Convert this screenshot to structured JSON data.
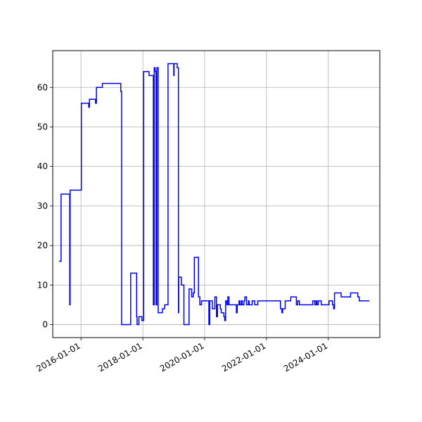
{
  "chart_data": {
    "type": "line",
    "title": "",
    "xlabel": "",
    "ylabel": "",
    "x_axis": "date",
    "xlim": [
      "2015-02-01",
      "2025-09-01"
    ],
    "ylim": [
      -3.3,
      69.3
    ],
    "grid": true,
    "line_color": "#0000ff",
    "x_ticks": [
      "2016-01-01",
      "2018-01-01",
      "2020-01-01",
      "2022-01-01",
      "2024-01-01"
    ],
    "y_ticks": [
      0,
      10,
      20,
      30,
      40,
      50,
      60
    ],
    "series": [
      {
        "style": "steps-post",
        "x": [
          "2015-04-15",
          "2015-05-10",
          "2015-08-20",
          "2015-08-25",
          "2015-09-01",
          "2016-01-05",
          "2016-04-01",
          "2016-04-10",
          "2016-06-20",
          "2016-07-01",
          "2016-09-10",
          "2017-04-15",
          "2017-04-25",
          "2017-05-01",
          "2017-08-10",
          "2017-10-20",
          "2017-10-25",
          "2017-11-15",
          "2017-12-20",
          "2018-01-10",
          "2018-03-15",
          "2018-05-05",
          "2018-05-15",
          "2018-05-25",
          "2018-06-05",
          "2018-06-15",
          "2018-07-01",
          "2018-08-10",
          "2018-08-20",
          "2018-09-15",
          "2018-10-25",
          "2019-01-01",
          "2019-01-05",
          "2019-02-10",
          "2019-02-15",
          "2019-02-25",
          "2019-03-01",
          "2019-04-01",
          "2019-05-01",
          "2019-07-01",
          "2019-08-01",
          "2019-08-20",
          "2019-09-01",
          "2019-09-15",
          "2019-10-20",
          "2019-11-05",
          "2019-11-25",
          "2020-02-20",
          "2020-03-01",
          "2020-03-20",
          "2020-04-01",
          "2020-05-01",
          "2020-05-20",
          "2020-06-01",
          "2020-07-05",
          "2020-07-15",
          "2020-08-15",
          "2020-08-25",
          "2020-09-05",
          "2020-09-20",
          "2020-10-01",
          "2020-10-15",
          "2021-01-10",
          "2021-01-20",
          "2021-02-10",
          "2021-02-20",
          "2021-03-10",
          "2021-03-20",
          "2021-04-10",
          "2021-04-20",
          "2021-05-10",
          "2021-06-01",
          "2021-06-10",
          "2021-07-15",
          "2021-08-01",
          "2021-08-15",
          "2021-09-20",
          "2021-11-15",
          "2022-06-15",
          "2022-07-01",
          "2022-07-10",
          "2022-08-10",
          "2022-10-15",
          "2022-12-20",
          "2023-01-05",
          "2023-01-25",
          "2023-03-20",
          "2023-06-10",
          "2023-07-01",
          "2023-07-25",
          "2023-08-10",
          "2023-08-20",
          "2023-09-05",
          "2023-10-10",
          "2024-01-10",
          "2024-02-20",
          "2024-03-05",
          "2024-03-15",
          "2024-06-01",
          "2024-09-20",
          "2024-12-15",
          "2025-01-01",
          "2025-05-01"
        ],
        "y": [
          16,
          33,
          5,
          34,
          34,
          56,
          55,
          57,
          56,
          60,
          61,
          59,
          0,
          0,
          13,
          2,
          0,
          2,
          1,
          64,
          63,
          5,
          65,
          64,
          5,
          65,
          3,
          3,
          4,
          5,
          66,
          63,
          66,
          65,
          65,
          3,
          12,
          10,
          0,
          9,
          7,
          8,
          17,
          17,
          7,
          5,
          6,
          0,
          6,
          6,
          4,
          7,
          2,
          5,
          4,
          3,
          2,
          1,
          6,
          5,
          7,
          5,
          3,
          5,
          6,
          5,
          6,
          5,
          6,
          7,
          5,
          6,
          5,
          6,
          6,
          5,
          6,
          6,
          4,
          3,
          4,
          6,
          7,
          5,
          6,
          5,
          5,
          5,
          6,
          5,
          6,
          5,
          6,
          5,
          6,
          5,
          4,
          8,
          7,
          8,
          7,
          6,
          6
        ]
      }
    ]
  }
}
